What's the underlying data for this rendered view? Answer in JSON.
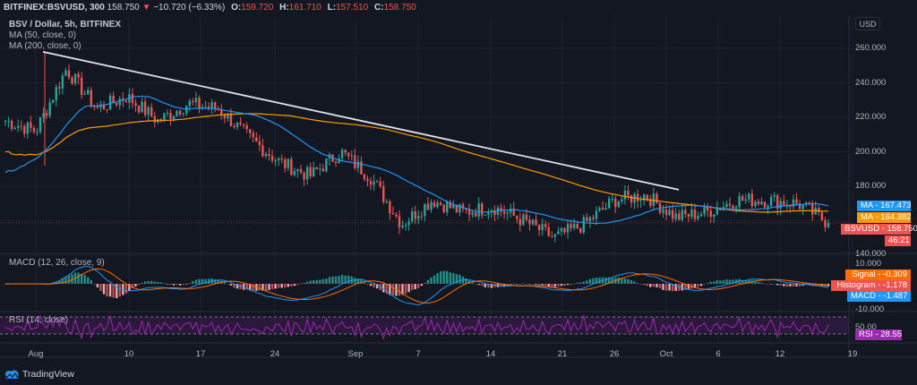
{
  "header": {
    "symbol": "BITFINEX:BSVUSD, 300",
    "last": "158.750",
    "change_arrow": "▼",
    "change": "−10.720 (−6.33%)",
    "o_label": "O:",
    "o": "159.720",
    "h_label": "H:",
    "h": "161.710",
    "l_label": "L:",
    "l": "157.510",
    "c_label": "C:",
    "c": "158.750"
  },
  "legend": {
    "title": "BSV / Dollar, 5h, BITFINEX",
    "ma50": "MA (50, close, 0)",
    "ma200": "MA (200, close, 0)",
    "macd": "MACD (12, 26, close, 9)",
    "rsi": "RSI (14, close)"
  },
  "price_axis": {
    "currency": "USD",
    "ticks": [
      "260.000",
      "240.000",
      "220.000",
      "200.000",
      "180.000",
      "140.000"
    ],
    "macd_ticks": [
      "10.000",
      "-10.000"
    ],
    "rsi_ticks": [
      "50.00"
    ]
  },
  "tags": {
    "ma50": "MA - 167.473",
    "ma200": "MA - 164.382",
    "price": "BSVUSD - 158.750",
    "countdown": "46:21",
    "signal": "Signal - -0.309",
    "histogram": "Histogram - -1.178",
    "macd": "MACD - -1.487",
    "rsi": "RSI - 28.55"
  },
  "time_axis": {
    "labels": [
      "Aug",
      "10",
      "17",
      "24",
      "Sep",
      "7",
      "14",
      "21",
      "26",
      "Oct",
      "6",
      "12",
      "19"
    ]
  },
  "branding": {
    "name": "TradingView"
  },
  "colors": {
    "bg": "#131722",
    "up": "#26a69a",
    "down": "#ef5350",
    "ma50": "#2196f3",
    "ma200": "#ff9800",
    "trendline": "#e0e3eb",
    "rsi": "#9c27b0",
    "signal": "#ff6d00",
    "histogram": "#ef5350",
    "macd": "#2196f3"
  },
  "chart_data": {
    "type": "candlestick",
    "title": "BSV / Dollar, 5h, BITFINEX",
    "xlabel": "",
    "ylabel": "USD",
    "x_ticks": [
      "Aug",
      "10",
      "17",
      "24",
      "Sep",
      "7",
      "14",
      "21",
      "26",
      "Oct",
      "6",
      "12",
      "19"
    ],
    "ylim": [
      140,
      265
    ],
    "y_ticks": [
      140,
      180,
      200,
      220,
      240,
      260
    ],
    "approx_close_series": {
      "dates": [
        "Aug 1",
        "Aug 3",
        "Aug 5",
        "Aug 7",
        "Aug 10",
        "Aug 13",
        "Aug 16",
        "Aug 18",
        "Aug 20",
        "Aug 24",
        "Aug 28",
        "Aug 31",
        "Sep 2",
        "Sep 4",
        "Sep 7",
        "Sep 10",
        "Sep 14",
        "Sep 18",
        "Sep 21",
        "Sep 24",
        "Sep 27",
        "Sep 30",
        "Oct 2",
        "Oct 6",
        "Oct 9",
        "Oct 12",
        "Oct 15",
        "Oct 16"
      ],
      "close": [
        218,
        212,
        248,
        225,
        232,
        218,
        228,
        225,
        208,
        194,
        186,
        200,
        185,
        158,
        172,
        165,
        168,
        160,
        150,
        158,
        172,
        175,
        162,
        165,
        172,
        172,
        170,
        158.75
      ]
    },
    "series": [
      {
        "name": "MA (50, close, 0)",
        "last": 167.473
      },
      {
        "name": "MA (200, close, 0)",
        "last": 164.382
      },
      {
        "name": "BSVUSD",
        "last": 158.75
      }
    ],
    "trendline": {
      "from": [
        "Aug 3",
        258
      ],
      "to": [
        "Oct 1",
        178
      ]
    },
    "indicators": {
      "macd": {
        "params": "12, 26, close, 9",
        "signal": -0.309,
        "histogram": -1.178,
        "macd": -1.487,
        "range": [
          -10,
          10
        ]
      },
      "rsi": {
        "params": "14, close",
        "value": 28.55,
        "ticks": [
          50
        ]
      }
    }
  }
}
